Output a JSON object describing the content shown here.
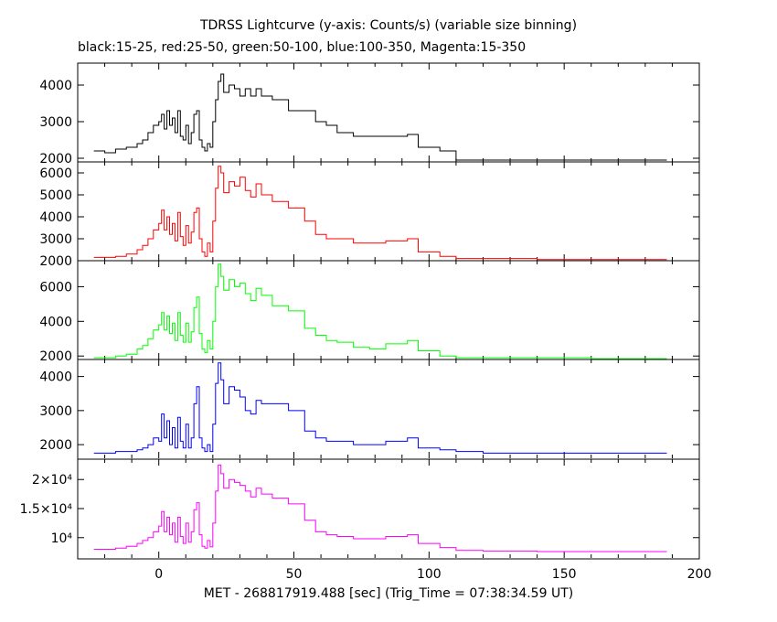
{
  "title": "TDRSS Lightcurve (y-axis: Counts/s) (variable size binning)",
  "subtitle": "black:15-25, red:25-50, green:50-100, blue:100-350, Magenta:15-350",
  "chart_data": {
    "type": "line",
    "xlabel": "MET - 268817919.488 [sec] (Trig_Time = 07:38:34.59 UT)",
    "xlim": [
      -30,
      200
    ],
    "xticks": [
      0,
      50,
      100,
      150,
      200
    ],
    "xtick_labels": [
      "0",
      "50",
      "100",
      "150",
      "200"
    ],
    "series": [
      {
        "color": "#000000",
        "ylim": [
          1900,
          4600
        ],
        "yticks": [
          2000,
          3000,
          4000
        ],
        "ytick_labels": [
          "2000",
          "3000",
          "4000"
        ],
        "x": [
          -24,
          -20,
          -16,
          -12,
          -8,
          -6,
          -4,
          -2,
          0,
          1,
          2,
          3,
          4,
          5,
          6,
          7,
          8,
          9,
          10,
          11,
          12,
          13,
          14,
          15,
          16,
          17,
          18,
          19,
          20,
          21,
          22,
          23,
          24,
          26,
          28,
          30,
          32,
          34,
          36,
          38,
          42,
          48,
          54,
          58,
          62,
          66,
          72,
          78,
          84,
          92,
          96,
          104,
          110,
          120,
          140,
          160,
          186
        ],
        "values": [
          2200,
          2150,
          2250,
          2300,
          2400,
          2500,
          2700,
          2900,
          3000,
          3200,
          2800,
          3300,
          2900,
          3100,
          2700,
          3300,
          2600,
          2500,
          2900,
          2400,
          2700,
          3200,
          3300,
          2500,
          2300,
          2200,
          2400,
          2300,
          3000,
          3600,
          4100,
          4300,
          3800,
          4000,
          3900,
          3700,
          3900,
          3700,
          3900,
          3700,
          3600,
          3300,
          3300,
          3000,
          2900,
          2700,
          2600,
          2600,
          2600,
          2650,
          2300,
          2200,
          1950,
          1950,
          1950,
          1950,
          1950
        ]
      },
      {
        "color": "#ff0000",
        "ylim": [
          2000,
          6500
        ],
        "yticks": [
          2000,
          3000,
          4000,
          5000,
          6000
        ],
        "ytick_labels": [
          "2000",
          "3000",
          "4000",
          "5000",
          "6000"
        ],
        "x": [
          -24,
          -20,
          -16,
          -12,
          -8,
          -6,
          -4,
          -2,
          0,
          1,
          2,
          3,
          4,
          5,
          6,
          7,
          8,
          9,
          10,
          11,
          12,
          13,
          14,
          15,
          16,
          17,
          18,
          19,
          20,
          21,
          22,
          23,
          24,
          26,
          28,
          30,
          32,
          34,
          36,
          38,
          42,
          48,
          54,
          58,
          62,
          66,
          72,
          78,
          84,
          92,
          96,
          104,
          110,
          120,
          140,
          160,
          186
        ],
        "values": [
          2150,
          2150,
          2200,
          2300,
          2500,
          2700,
          3000,
          3400,
          3700,
          4300,
          3400,
          4000,
          3200,
          3700,
          2900,
          4200,
          3100,
          2700,
          3600,
          2800,
          3300,
          4200,
          4400,
          3000,
          2400,
          2200,
          2800,
          2400,
          3800,
          5300,
          6300,
          6000,
          5100,
          5600,
          5400,
          5800,
          5200,
          4900,
          5500,
          5000,
          4700,
          4400,
          3800,
          3200,
          3000,
          3000,
          2800,
          2800,
          2900,
          3000,
          2400,
          2200,
          2100,
          2100,
          2050,
          2050,
          2050
        ]
      },
      {
        "color": "#00ff00",
        "ylim": [
          1800,
          7500
        ],
        "yticks": [
          2000,
          4000,
          6000
        ],
        "ytick_labels": [
          "2000",
          "4000",
          "6000"
        ],
        "x": [
          -24,
          -20,
          -16,
          -12,
          -8,
          -6,
          -4,
          -2,
          0,
          1,
          2,
          3,
          4,
          5,
          6,
          7,
          8,
          9,
          10,
          11,
          12,
          13,
          14,
          15,
          16,
          17,
          18,
          19,
          20,
          21,
          22,
          23,
          24,
          26,
          28,
          30,
          32,
          34,
          36,
          38,
          42,
          48,
          54,
          58,
          62,
          66,
          72,
          78,
          84,
          92,
          96,
          104,
          110,
          120,
          140,
          160,
          186
        ],
        "values": [
          1900,
          1900,
          2000,
          2100,
          2400,
          2600,
          3000,
          3500,
          3800,
          4500,
          3500,
          4300,
          3300,
          3900,
          2900,
          4500,
          3200,
          2800,
          3900,
          2800,
          3400,
          4800,
          5400,
          3300,
          2400,
          2200,
          2900,
          2400,
          4000,
          6000,
          7300,
          6600,
          5800,
          6400,
          6000,
          6200,
          5600,
          5200,
          5900,
          5500,
          4900,
          4600,
          3600,
          3200,
          2900,
          2800,
          2500,
          2400,
          2700,
          2900,
          2300,
          2000,
          1900,
          1900,
          1900,
          1850,
          1850
        ]
      },
      {
        "color": "#0000ff",
        "ylim": [
          1600,
          4500
        ],
        "yticks": [
          2000,
          3000,
          4000
        ],
        "ytick_labels": [
          "2000",
          "3000",
          "4000"
        ],
        "x": [
          -24,
          -20,
          -16,
          -12,
          -8,
          -6,
          -4,
          -2,
          0,
          1,
          2,
          3,
          4,
          5,
          6,
          7,
          8,
          9,
          10,
          11,
          12,
          13,
          14,
          15,
          16,
          17,
          18,
          19,
          20,
          21,
          22,
          23,
          24,
          26,
          28,
          30,
          32,
          34,
          36,
          38,
          42,
          48,
          54,
          58,
          62,
          66,
          72,
          78,
          84,
          92,
          96,
          104,
          110,
          120,
          140,
          160,
          186
        ],
        "values": [
          1750,
          1750,
          1800,
          1800,
          1850,
          1900,
          2000,
          2200,
          2100,
          2900,
          2200,
          2700,
          2000,
          2500,
          1900,
          2800,
          2100,
          1900,
          2600,
          1900,
          2200,
          3200,
          3700,
          2200,
          1900,
          1800,
          2000,
          1800,
          2600,
          3800,
          4400,
          3900,
          3200,
          3700,
          3600,
          3400,
          3000,
          2900,
          3300,
          3200,
          3200,
          3000,
          2400,
          2200,
          2100,
          2100,
          2000,
          2000,
          2100,
          2200,
          1900,
          1850,
          1800,
          1750,
          1750,
          1750,
          1750
        ]
      },
      {
        "color": "#ff00ff",
        "ylim": [
          6500,
          23500
        ],
        "yticks": [
          10000,
          15000,
          20000
        ],
        "ytick_labels": [
          "10⁴",
          "1.5×10⁴",
          "2×10⁴"
        ],
        "x": [
          -24,
          -20,
          -16,
          -12,
          -8,
          -6,
          -4,
          -2,
          0,
          1,
          2,
          3,
          4,
          5,
          6,
          7,
          8,
          9,
          10,
          11,
          12,
          13,
          14,
          15,
          16,
          17,
          18,
          19,
          20,
          21,
          22,
          23,
          24,
          26,
          28,
          30,
          32,
          34,
          36,
          38,
          42,
          48,
          54,
          58,
          62,
          66,
          72,
          78,
          84,
          92,
          96,
          104,
          110,
          120,
          140,
          160,
          186
        ],
        "values": [
          8000,
          8000,
          8200,
          8500,
          9000,
          9500,
          10000,
          11000,
          12000,
          14500,
          11000,
          13500,
          10500,
          12500,
          9200,
          13500,
          10200,
          9000,
          12500,
          9200,
          11000,
          14800,
          16000,
          10500,
          8500,
          8200,
          9500,
          8400,
          12500,
          18000,
          22500,
          21000,
          18500,
          20000,
          19500,
          19000,
          18000,
          17000,
          18500,
          17500,
          16800,
          15800,
          13000,
          11000,
          10500,
          10200,
          9800,
          9800,
          10200,
          10500,
          9000,
          8300,
          7800,
          7700,
          7600,
          7600,
          7600
        ]
      }
    ]
  }
}
